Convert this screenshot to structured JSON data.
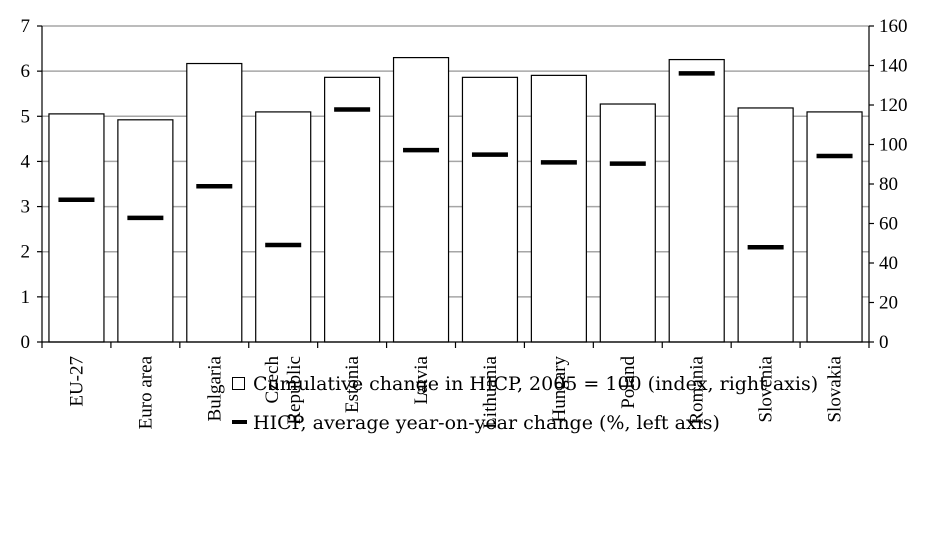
{
  "chart_data": {
    "type": "bar",
    "categories": [
      "EU-27",
      "Euro area",
      "Bulgaria",
      "Czech Republic",
      "Estonia",
      "Latvia",
      "Lithuania",
      "Hungary",
      "Poland",
      "Romania",
      "Slovenia",
      "Slovakia"
    ],
    "category_lines": [
      [
        "EU-27"
      ],
      [
        "Euro area"
      ],
      [
        "Bulgaria"
      ],
      [
        "Czech",
        "Republic"
      ],
      [
        "Estonia"
      ],
      [
        "Latvia"
      ],
      [
        "Lithuania"
      ],
      [
        "Hungary"
      ],
      [
        "Poland"
      ],
      [
        "Romania"
      ],
      [
        "Slovenia"
      ],
      [
        "Slovakia"
      ]
    ],
    "series": [
      {
        "name": "Cumulative change in HICP, 2005 = 100 (index, right axis)",
        "kind": "bar",
        "axis": "right",
        "values": [
          115.5,
          112.5,
          141,
          116.5,
          134,
          144,
          134,
          135,
          120.5,
          143,
          118.5,
          116.5
        ]
      },
      {
        "name": "HICP, average year-on-year change (%, left axis)",
        "kind": "marker",
        "axis": "left",
        "values": [
          3.15,
          2.75,
          3.45,
          2.15,
          5.15,
          4.25,
          4.15,
          3.98,
          3.95,
          5.95,
          2.1,
          4.12
        ]
      }
    ],
    "y_left": {
      "min": 0,
      "max": 7,
      "ticks": [
        "0",
        "1",
        "2",
        "3",
        "4",
        "5",
        "6",
        "7"
      ]
    },
    "y_right": {
      "min": 0,
      "max": 160,
      "ticks": [
        "0",
        "20",
        "40",
        "60",
        "80",
        "100",
        "120",
        "140",
        "160"
      ]
    },
    "grid": true,
    "legend_position": "bottom",
    "colors": {
      "bar_fill": "#ffffff",
      "bar_stroke": "#000000",
      "marker": "#000000",
      "grid": "#a6a6a6"
    }
  }
}
